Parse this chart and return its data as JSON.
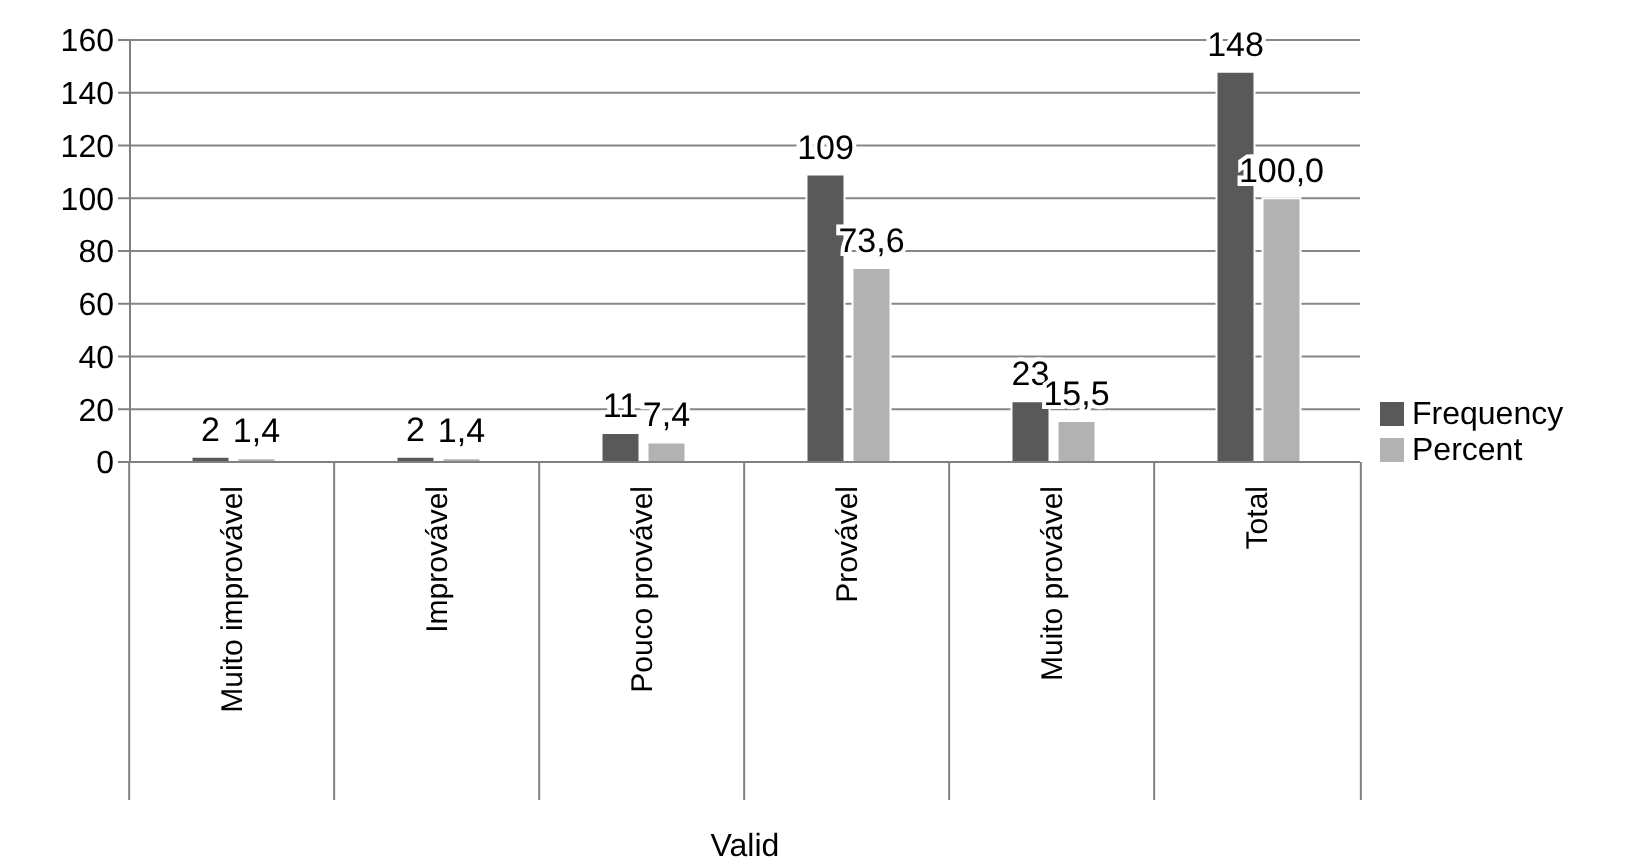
{
  "chart_data": {
    "type": "bar",
    "xlabel": "Valid",
    "categories": [
      "Muito improvável",
      "Improvável",
      "Pouco provável",
      "Provável",
      "Muito provável",
      "Total"
    ],
    "series": [
      {
        "name": "Frequency",
        "color": "#595959",
        "values": [
          2,
          2,
          11,
          109,
          23,
          148
        ],
        "value_labels": [
          "2",
          "2",
          "11",
          "109",
          "23",
          "148"
        ]
      },
      {
        "name": "Percent",
        "color": "#b2b2b2",
        "values": [
          1.4,
          1.4,
          7.4,
          73.6,
          15.5,
          100.0
        ],
        "value_labels": [
          "1,4",
          "1,4",
          "7,4",
          "73,6",
          "15,5",
          "100,0"
        ]
      }
    ],
    "ylim": [
      0,
      160
    ],
    "yticks": [
      0,
      20,
      40,
      60,
      80,
      100,
      120,
      140,
      160
    ],
    "grid": "y",
    "legend": "right"
  }
}
